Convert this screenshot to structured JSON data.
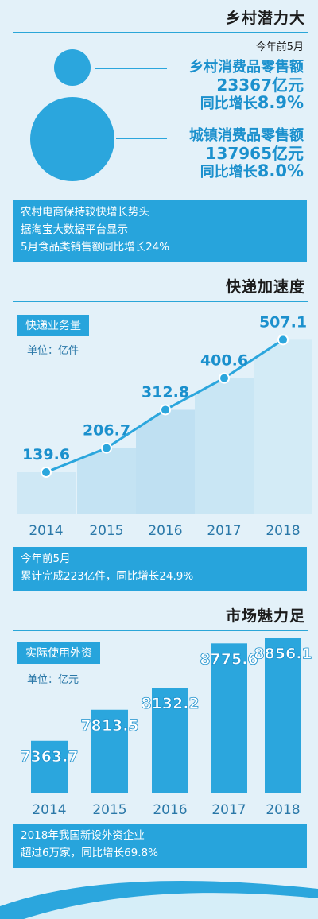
{
  "section1": {
    "title": "乡村潜力大",
    "period": "今年前5月",
    "rural": {
      "label": "乡村消费品零售额",
      "value": "23367亿元",
      "growth_prefix": "同比增长",
      "growth": "8.9%"
    },
    "urban": {
      "label": "城镇消费品零售额",
      "value": "137965亿元",
      "growth_prefix": "同比增长",
      "growth": "8.0%"
    },
    "note": [
      "农村电商保持较快增长势头",
      "据淘宝大数据平台显示",
      "5月食品类销售额同比增长24%"
    ]
  },
  "section2": {
    "title": "快递加速度",
    "tag": "快递业务量",
    "unit": "单位：亿件",
    "note": [
      "今年前5月",
      "累计完成223亿件，同比增长24.9%"
    ]
  },
  "section3": {
    "title": "市场魅力足",
    "tag": "实际使用外资",
    "unit": "单位：亿元",
    "note": [
      "2018年我国新设外资企业",
      "超过6万家，同比增长69.8%"
    ]
  },
  "colors": {
    "accent": "#27a4dc",
    "text_blue": "#1b90cd",
    "background": "#e3f1f9"
  },
  "chart_data": [
    {
      "type": "line",
      "title": "快递业务量",
      "ylabel": "单位：亿件",
      "categories": [
        "2014",
        "2015",
        "2016",
        "2017",
        "2018"
      ],
      "values": [
        139.6,
        206.7,
        312.8,
        400.6,
        507.1
      ],
      "labels": [
        "139.6",
        "206.7",
        "312.8",
        "400.6",
        "507.1"
      ]
    },
    {
      "type": "bar",
      "title": "实际使用外资",
      "ylabel": "单位：亿元",
      "categories": [
        "2014",
        "2015",
        "2016",
        "2017",
        "2018"
      ],
      "values": [
        7363.7,
        7813.5,
        8132.2,
        8775.6,
        8856.1
      ],
      "labels": [
        "7363.7",
        "7813.5",
        "8132.2",
        "8775.6",
        "8856.1"
      ]
    }
  ]
}
